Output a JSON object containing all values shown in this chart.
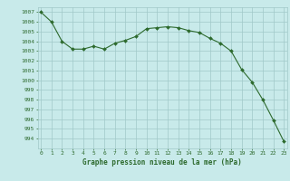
{
  "x": [
    0,
    1,
    2,
    3,
    4,
    5,
    6,
    7,
    8,
    9,
    10,
    11,
    12,
    13,
    14,
    15,
    16,
    17,
    18,
    19,
    20,
    21,
    22,
    23
  ],
  "y": [
    1007.0,
    1006.0,
    1004.0,
    1003.2,
    1003.2,
    1003.5,
    1003.2,
    1003.8,
    1004.1,
    1004.5,
    1005.3,
    1005.4,
    1005.5,
    1005.4,
    1005.1,
    1004.9,
    1004.3,
    1003.8,
    1003.0,
    1001.1,
    999.8,
    998.0,
    995.9,
    993.7
  ],
  "line_color": "#2d6a2d",
  "marker_color": "#2d6a2d",
  "bg_color": "#c8eaea",
  "grid_color": "#a0c8c8",
  "text_color": "#2d6a2d",
  "xlabel": "Graphe pression niveau de la mer (hPa)",
  "ylim_min": 993.0,
  "ylim_max": 1007.5,
  "yticks": [
    994,
    995,
    996,
    997,
    998,
    999,
    1000,
    1001,
    1002,
    1003,
    1004,
    1005,
    1006,
    1007
  ],
  "xticks": [
    0,
    1,
    2,
    3,
    4,
    5,
    6,
    7,
    8,
    9,
    10,
    11,
    12,
    13,
    14,
    15,
    16,
    17,
    18,
    19,
    20,
    21,
    22,
    23
  ]
}
